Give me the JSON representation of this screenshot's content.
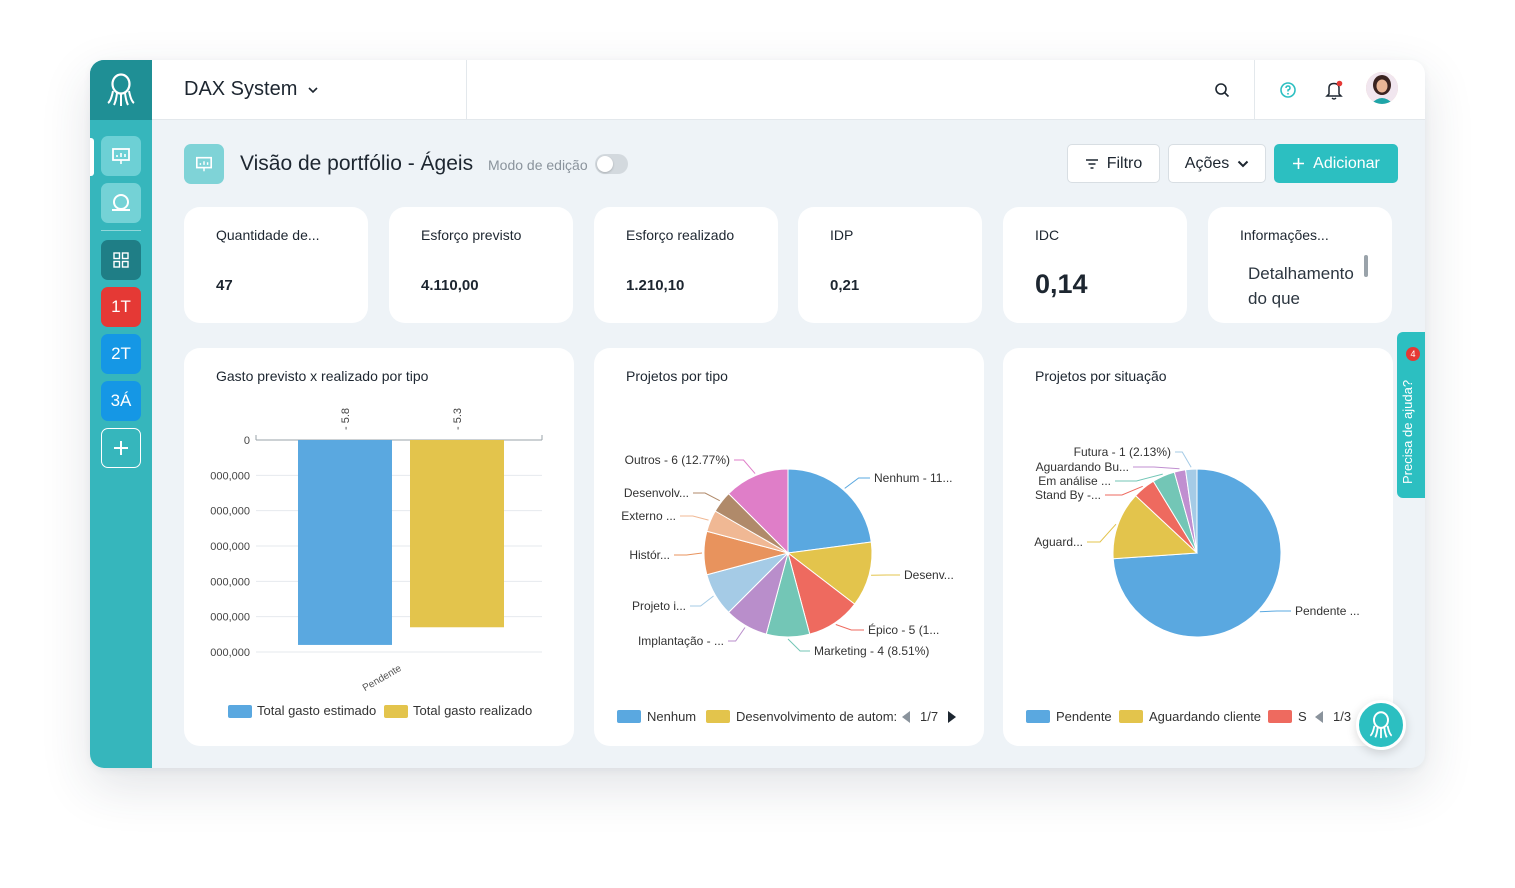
{
  "app": {
    "title": "DAX System"
  },
  "sidebar": {
    "items": [
      "1T",
      "2T",
      "3Á"
    ]
  },
  "page": {
    "title": "Visão de portfólio - Ágeis",
    "edit_mode_label": "Modo de edição",
    "edit_mode_on": false
  },
  "toolbar": {
    "filter_label": "Filtro",
    "actions_label": "Ações",
    "add_label": "Adicionar"
  },
  "kpis": [
    {
      "label": "Quantidade de...",
      "value": "47"
    },
    {
      "label": "Esforço previsto",
      "value": "4.110,00"
    },
    {
      "label": "Esforço realizado",
      "value": "1.210,10"
    },
    {
      "label": "IDP",
      "value": "0,21"
    },
    {
      "label": "IDC",
      "value": "0,14"
    },
    {
      "label": "Informações...",
      "value": "Detalhamento do que"
    }
  ],
  "help": {
    "label": "Precisa de ajuda?",
    "badge": "4"
  },
  "colors": {
    "primary": "#2cbfc1",
    "sidebar": "#36b6bc",
    "sidebar_dark": "#1f8f95",
    "red": "#e53935",
    "blue": "#1597e5"
  },
  "chart_data": [
    {
      "type": "bar",
      "title": "Gasto previsto x realizado por tipo",
      "categories": [
        "Pendente"
      ],
      "series": [
        {
          "name": "Total gasto estimado",
          "values": [
            5.8
          ],
          "color": "#5aa8e0",
          "label": "5.8"
        },
        {
          "name": "Total gasto realizado",
          "values": [
            5.3
          ],
          "color": "#e3c44c",
          "label": "5.3"
        }
      ],
      "ytick_labels": [
        "0",
        "000,000",
        "000,000",
        "000,000",
        "000,000",
        "000,000",
        "000,000"
      ],
      "ylim": [
        0,
        6
      ]
    },
    {
      "type": "pie",
      "title": "Projetos por tipo",
      "slices": [
        {
          "name": "Nenhum",
          "label": "Nenhum - 11...",
          "value": 11,
          "color": "#5aa8e0"
        },
        {
          "name": "Desenvolvimento de automação",
          "label": "Desenv...",
          "value": 6,
          "color": "#e3c44c"
        },
        {
          "name": "Épico",
          "label": "Épico - 5 (1...",
          "value": 5,
          "color": "#ee6a5f"
        },
        {
          "name": "Marketing",
          "label": "Marketing - 4 (8.51%)",
          "value": 4,
          "color": "#73c6b6"
        },
        {
          "name": "Implantação",
          "label": "Implantação - ...",
          "value": 4,
          "color": "#b98ecb"
        },
        {
          "name": "Projeto i...",
          "label": "Projeto i...",
          "value": 4,
          "color": "#a5cbe6"
        },
        {
          "name": "Histór...",
          "label": "Histór...",
          "value": 4,
          "color": "#e8935d"
        },
        {
          "name": "Externo",
          "label": "Externo ...",
          "value": 2,
          "color": "#f0b894"
        },
        {
          "name": "Desenvolv...",
          "label": "Desenvolv...",
          "value": 2,
          "color": "#b08a6a"
        },
        {
          "name": "Outros",
          "label": "Outros - 6 (12.77%)",
          "value": 6,
          "color": "#df7ec8"
        }
      ],
      "legend_visible": [
        "Nenhum",
        "Desenvolvimento de autom:"
      ],
      "legend_page": "1/7"
    },
    {
      "type": "pie",
      "title": "Projetos por situação",
      "slices": [
        {
          "name": "Pendente",
          "label": "Pendente ...",
          "value": 34,
          "color": "#5aa8e0"
        },
        {
          "name": "Aguardando cliente",
          "label": "Aguard...",
          "value": 6,
          "color": "#e3c44c"
        },
        {
          "name": "Stand By",
          "label": "Stand By -...",
          "value": 2,
          "color": "#ee6a5f"
        },
        {
          "name": "Em análise",
          "label": "Em análise ...",
          "value": 2,
          "color": "#73c6b6"
        },
        {
          "name": "Aguardando Bu...",
          "label": "Aguardando Bu...",
          "value": 1,
          "color": "#c08fd0"
        },
        {
          "name": "Futura",
          "label": "Futura - 1 (2.13%)",
          "value": 1,
          "color": "#a5cbe6"
        }
      ],
      "legend_visible": [
        "Pendente",
        "Aguardando cliente",
        "S"
      ],
      "legend_page": "1/3"
    }
  ]
}
